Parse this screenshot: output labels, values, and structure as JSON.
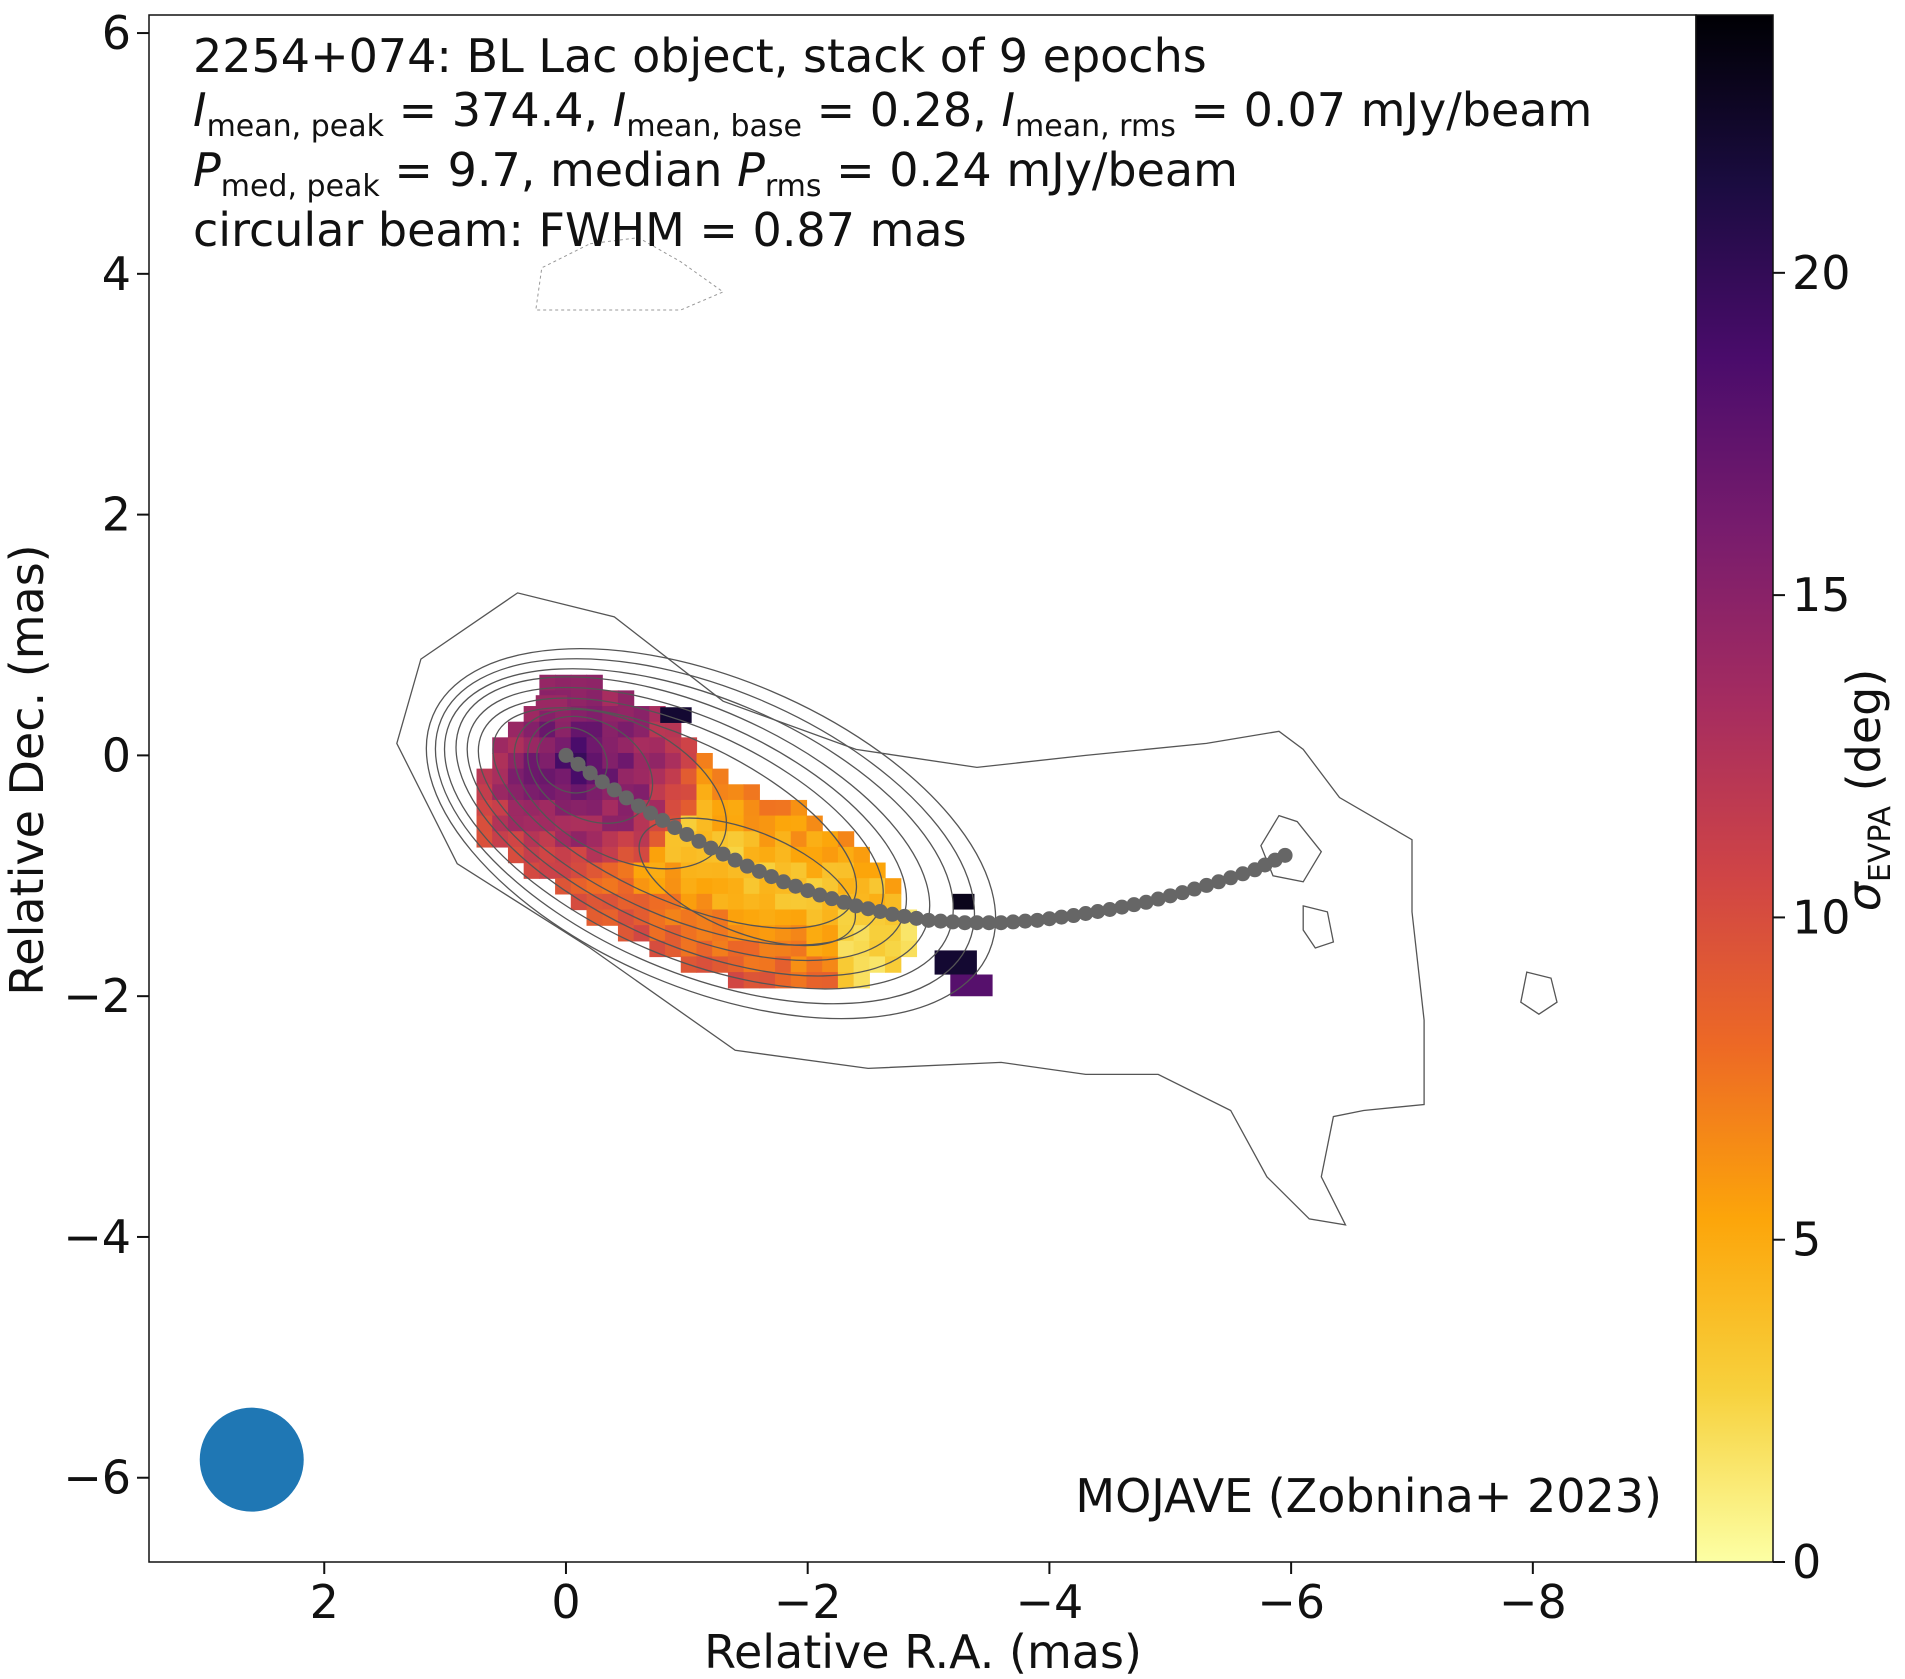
{
  "chart_data": {
    "type": "heatmap",
    "title_lines": [
      "2254+074: BL Lac object, stack of 9 epochs",
      "I_mean,peak = 374.4, I_mean,base = 0.28, I_mean,rms = 0.07 mJy/beam",
      "P_med,peak = 9.7, median P_rms = 0.24 mJy/beam",
      "circular beam: FWHM = 0.87 mas"
    ],
    "header": {
      "line1": "2254+074: BL Lac object, stack of 9 epochs",
      "l2_I": "I",
      "l2_sub1": "mean, peak",
      "l2_t1": " = 374.4, ",
      "l2_sub2": "mean, base",
      "l2_t2": " = 0.28, ",
      "l2_sub3": "mean, rms",
      "l2_t3": " = 0.07 mJy/beam",
      "l3_P": "P",
      "l3_sub1": "med, peak",
      "l3_t1": " = 9.7, median ",
      "l3_sub2": "rms",
      "l3_t2": " = 0.24 mJy/beam",
      "line4": "circular beam: FWHM = 0.87 mas"
    },
    "credit": "MOJAVE (Zobnina+ 2023)",
    "xlabel": "Relative R.A. (mas)",
    "ylabel": "Relative Dec. (mas)",
    "colorbar_label_symbol": "σ",
    "colorbar_label_sub": "EVPA",
    "colorbar_label_unit": " (deg)",
    "xlim": [
      3.45,
      -9.35
    ],
    "ylim": [
      -6.7,
      6.15
    ],
    "x_ticks": [
      2,
      0,
      -2,
      -4,
      -6,
      -8
    ],
    "x_tick_labels": [
      "2",
      "0",
      "−2",
      "−4",
      "−6",
      "−8"
    ],
    "y_ticks": [
      6,
      4,
      2,
      0,
      -2,
      -4,
      -6
    ],
    "y_tick_labels": [
      "6",
      "4",
      "2",
      "0",
      "−2",
      "−4",
      "−6"
    ],
    "colorbar_range": [
      0,
      24
    ],
    "colorbar_ticks": [
      0,
      5,
      10,
      15,
      20
    ],
    "colorbar_tick_labels": [
      "0",
      "5",
      "10",
      "15",
      "20"
    ],
    "colormap": "inferno_r",
    "colormap_stops": [
      "#fcffa4",
      "#f7d13d",
      "#fca50a",
      "#ed6925",
      "#cf4446",
      "#a52c60",
      "#781c6d",
      "#4a0c6b",
      "#1b0c41",
      "#000004"
    ],
    "beam": {
      "x": 2.6,
      "y": -5.85,
      "fwhm_mas": 0.87,
      "color": "#1f77b4"
    },
    "ridge_line": {
      "color": "#666666",
      "points": [
        [
          0.0,
          0.0
        ],
        [
          -0.3,
          -0.22
        ],
        [
          -0.6,
          -0.42
        ],
        [
          -0.9,
          -0.6
        ],
        [
          -1.2,
          -0.77
        ],
        [
          -1.5,
          -0.92
        ],
        [
          -1.8,
          -1.05
        ],
        [
          -2.1,
          -1.16
        ],
        [
          -2.4,
          -1.25
        ],
        [
          -2.7,
          -1.32
        ],
        [
          -3.0,
          -1.37
        ],
        [
          -3.3,
          -1.39
        ],
        [
          -3.6,
          -1.39
        ],
        [
          -3.9,
          -1.37
        ],
        [
          -4.2,
          -1.33
        ],
        [
          -4.5,
          -1.28
        ],
        [
          -4.8,
          -1.22
        ],
        [
          -5.1,
          -1.14
        ],
        [
          -5.4,
          -1.05
        ],
        [
          -5.7,
          -0.95
        ],
        [
          -5.95,
          -0.83
        ]
      ]
    },
    "contours": {
      "color": "#555555",
      "levels": [
        {
          "cx": -1.2,
          "cy": -0.65,
          "a": 2.5,
          "b": 1.28,
          "angle_deg": -23
        },
        {
          "cx": -1.15,
          "cy": -0.63,
          "a": 2.37,
          "b": 1.18,
          "angle_deg": -23
        },
        {
          "cx": -1.1,
          "cy": -0.61,
          "a": 2.24,
          "b": 1.08,
          "angle_deg": -23
        },
        {
          "cx": -1.05,
          "cy": -0.59,
          "a": 2.1,
          "b": 0.98,
          "angle_deg": -24
        },
        {
          "cx": -1.0,
          "cy": -0.57,
          "a": 1.95,
          "b": 0.88,
          "angle_deg": -24
        },
        {
          "cx": -0.95,
          "cy": -0.55,
          "a": 1.8,
          "b": 0.78,
          "angle_deg": -24
        },
        {
          "cx": -0.9,
          "cy": -0.52,
          "a": 1.63,
          "b": 0.66,
          "angle_deg": -25
        },
        {
          "cx": -0.45,
          "cy": -0.28,
          "a": 0.95,
          "b": 0.55,
          "angle_deg": -28
        },
        {
          "cx": -0.2,
          "cy": -0.12,
          "a": 0.55,
          "b": 0.4,
          "angle_deg": -30
        },
        {
          "cx": -0.05,
          "cy": -0.04,
          "a": 0.3,
          "b": 0.26,
          "angle_deg": -30
        },
        {
          "cx": -1.5,
          "cy": -1.05,
          "a": 0.95,
          "b": 0.42,
          "angle_deg": -22
        }
      ],
      "outer_path": [
        [
          1.4,
          0.1
        ],
        [
          1.2,
          0.8
        ],
        [
          0.4,
          1.35
        ],
        [
          -0.4,
          1.15
        ],
        [
          -1.3,
          0.45
        ],
        [
          -2.4,
          0.05
        ],
        [
          -3.4,
          -0.1
        ],
        [
          -4.3,
          0.0
        ],
        [
          -5.3,
          0.1
        ],
        [
          -5.9,
          0.2
        ],
        [
          -6.1,
          0.05
        ],
        [
          -6.4,
          -0.35
        ],
        [
          -7.0,
          -0.7
        ],
        [
          -7.0,
          -1.3
        ],
        [
          -7.1,
          -2.2
        ],
        [
          -7.1,
          -2.9
        ],
        [
          -6.6,
          -2.95
        ],
        [
          -6.35,
          -3.0
        ],
        [
          -6.25,
          -3.5
        ],
        [
          -6.45,
          -3.9
        ],
        [
          -6.15,
          -3.85
        ],
        [
          -5.8,
          -3.5
        ],
        [
          -5.5,
          -2.95
        ],
        [
          -4.9,
          -2.65
        ],
        [
          -4.3,
          -2.65
        ],
        [
          -3.6,
          -2.55
        ],
        [
          -2.5,
          -2.6
        ],
        [
          -1.4,
          -2.45
        ],
        [
          -0.2,
          -1.6
        ],
        [
          0.9,
          -0.9
        ],
        [
          1.4,
          0.1
        ]
      ],
      "islands": [
        [
          [
            -5.9,
            -0.5
          ],
          [
            -6.05,
            -0.55
          ],
          [
            -6.25,
            -0.8
          ],
          [
            -6.1,
            -1.05
          ],
          [
            -5.85,
            -1.0
          ],
          [
            -5.75,
            -0.75
          ],
          [
            -5.9,
            -0.5
          ]
        ],
        [
          [
            -6.1,
            -1.25
          ],
          [
            -6.3,
            -1.3
          ],
          [
            -6.35,
            -1.55
          ],
          [
            -6.2,
            -1.6
          ],
          [
            -6.1,
            -1.45
          ],
          [
            -6.1,
            -1.25
          ]
        ],
        [
          [
            -7.95,
            -1.8
          ],
          [
            -8.15,
            -1.85
          ],
          [
            -8.2,
            -2.05
          ],
          [
            -8.05,
            -2.15
          ],
          [
            -7.9,
            -2.05
          ],
          [
            -7.95,
            -1.8
          ]
        ],
        [
          [
            -0.2,
            4.25
          ],
          [
            -0.6,
            4.3
          ],
          [
            -0.95,
            4.1
          ],
          [
            -1.3,
            3.85
          ],
          [
            -0.95,
            3.7
          ],
          [
            -0.4,
            3.7
          ],
          [
            0.25,
            3.7
          ],
          [
            0.2,
            4.05
          ],
          [
            -0.2,
            4.25
          ]
        ]
      ],
      "islands_dashed": [
        3
      ]
    },
    "polarization_blob": {
      "pixel_mas": 0.13,
      "core_x": -0.1,
      "core_y": -0.05,
      "core_sigma": 18.5,
      "outer_path": [
        [
          0.4,
          0.3
        ],
        [
          0.15,
          0.65
        ],
        [
          -0.35,
          0.6
        ],
        [
          -0.9,
          0.3
        ],
        [
          -1.35,
          -0.2
        ],
        [
          -1.9,
          -0.4
        ],
        [
          -2.35,
          -0.7
        ],
        [
          -2.75,
          -1.05
        ],
        [
          -2.95,
          -1.5
        ],
        [
          -2.6,
          -1.85
        ],
        [
          -2.15,
          -2.0
        ],
        [
          -1.6,
          -1.95
        ],
        [
          -0.9,
          -1.7
        ],
        [
          -0.4,
          -1.5
        ],
        [
          0.2,
          -1.05
        ],
        [
          0.75,
          -0.65
        ],
        [
          0.75,
          -0.2
        ],
        [
          0.55,
          0.1
        ],
        [
          0.4,
          0.3
        ]
      ],
      "outlier_patches": [
        {
          "x": -3.2,
          "y": -1.15,
          "w": 0.18,
          "h": 0.13,
          "sigma": 23
        },
        {
          "x": -3.05,
          "y": -1.62,
          "w": 0.35,
          "h": 0.2,
          "sigma": 22
        },
        {
          "x": -3.18,
          "y": -1.82,
          "w": 0.35,
          "h": 0.18,
          "sigma": 18
        },
        {
          "x": -0.78,
          "y": 0.4,
          "w": 0.26,
          "h": 0.13,
          "sigma": 22
        },
        {
          "x": 0.25,
          "y": 0.5,
          "w": 0.26,
          "h": 0.13,
          "sigma": 14
        }
      ]
    }
  }
}
